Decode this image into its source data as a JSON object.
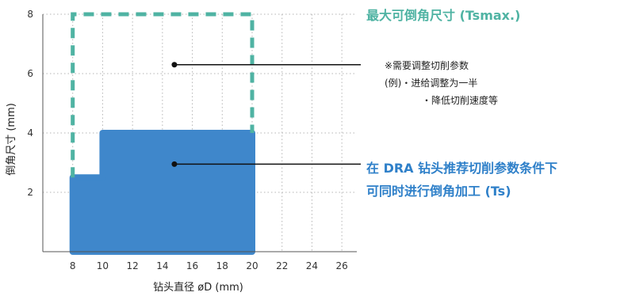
{
  "chart_data": {
    "type": "area",
    "xlabel": "钻头直径 øD (mm)",
    "ylabel": "倒角尺寸 (mm)",
    "xlim": [
      6,
      27
    ],
    "ylim": [
      0,
      8
    ],
    "x_ticks": [
      "8",
      "10",
      "12",
      "14",
      "16",
      "18",
      "20",
      "22",
      "24",
      "26"
    ],
    "y_ticks": [
      "2",
      "4",
      "6",
      "8"
    ],
    "grid": true,
    "regions": [
      {
        "name": "Ts",
        "style": "filled",
        "color": "#3F87CB",
        "points": [
          [
            8,
            0
          ],
          [
            8,
            2.5
          ],
          [
            10,
            2.5
          ],
          [
            10,
            4
          ],
          [
            20,
            4
          ],
          [
            20,
            0
          ]
        ]
      },
      {
        "name": "Tsmax",
        "style": "dashed-outline",
        "color": "#4FB3A3",
        "points": [
          [
            8,
            2.5
          ],
          [
            8,
            8
          ],
          [
            20,
            8
          ],
          [
            20,
            4
          ]
        ]
      }
    ],
    "annotations": [
      {
        "id": "tsmax",
        "title": "最大可倒角尺寸 (Tsmax.)",
        "title_color": "#4FB3A3",
        "point": [
          14.8,
          6.3
        ],
        "lines": [
          "※需要调整切削参数",
          "(例)・进给调整为一半",
          "・降低切削速度等"
        ]
      },
      {
        "id": "ts",
        "title_lines": [
          "在 DRA 钻头推荐切削参数条件下",
          "可同时进行倒角加工 (Ts)"
        ],
        "title_color": "#2F80C9",
        "point": [
          14.8,
          2.95
        ]
      }
    ]
  }
}
